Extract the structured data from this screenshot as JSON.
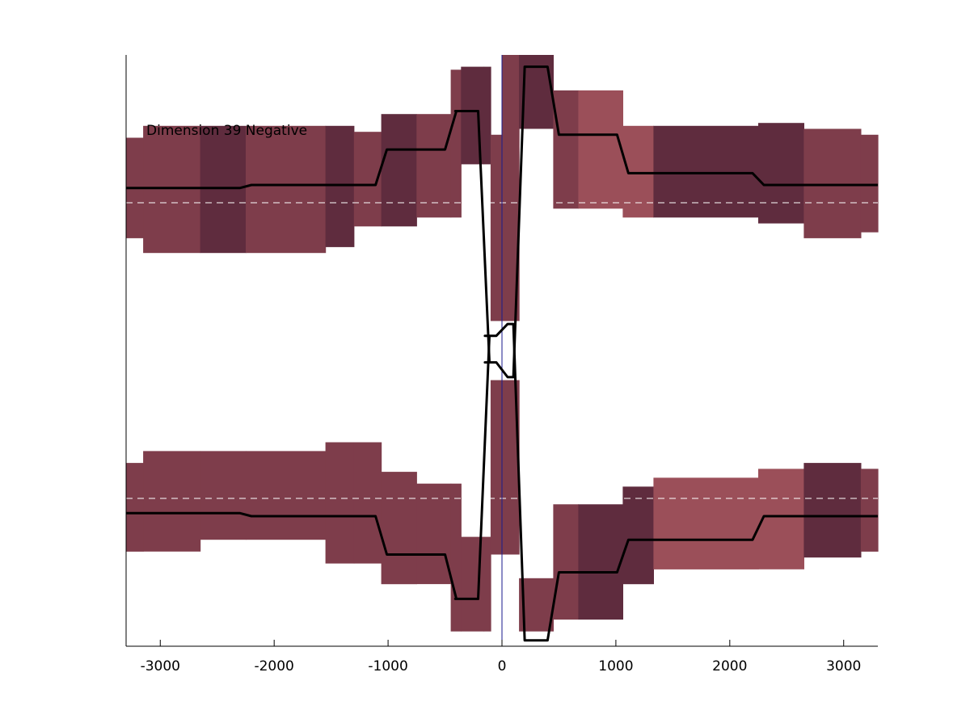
{
  "chart_data": {
    "type": "area",
    "title": "",
    "xlabel": "",
    "ylabel": "",
    "annotation": "Dimension 39 Negative",
    "xlim": [
      -3300,
      3300
    ],
    "ylim": [
      -1,
      1
    ],
    "x_ticks": [
      -3000,
      -2000,
      -1000,
      0,
      1000,
      2000,
      3000
    ],
    "x_tick_labels": [
      "-3000",
      "-2000",
      "-1000",
      "0",
      "1000",
      "2000",
      "3000"
    ],
    "y_axis_visible_ticks": false,
    "center_line_x": 0,
    "colors": {
      "line": "#000000",
      "baseline": "#ffffff",
      "center_line": "#1a1a8c",
      "band_light": "#9b4f59",
      "band_mid": "#7e3d4b",
      "band_dark": "#5f2c3e"
    },
    "segment_edges": [
      -3300,
      -3150,
      -2650,
      -2250,
      -1550,
      -1300,
      -1060,
      -750,
      -450,
      -360,
      -160,
      -100,
      0,
      150,
      450,
      670,
      1060,
      1330,
      2250,
      2650,
      3150,
      3300
    ],
    "series": [
      {
        "panel": "upper",
        "baseline": 0.5,
        "mean": [
          0.55,
          0.55,
          0.55,
          0.56,
          0.56,
          0.56,
          0.68,
          0.68,
          0.81,
          0.81,
          -0.04,
          -0.04,
          -0.09,
          0.96,
          0.73,
          0.73,
          0.6,
          0.6,
          0.56,
          0.56,
          0.56
        ],
        "upper": [
          0.72,
          0.76,
          0.76,
          0.76,
          0.76,
          0.74,
          0.8,
          0.8,
          0.95,
          0.96,
          0.96,
          0.73,
          1.0,
          1.0,
          0.88,
          0.88,
          0.76,
          0.76,
          0.77,
          0.75,
          0.73
        ],
        "lower": [
          0.38,
          0.33,
          0.33,
          0.33,
          0.35,
          0.42,
          0.42,
          0.45,
          0.45,
          0.63,
          0.63,
          0.1,
          0.1,
          0.75,
          0.48,
          0.48,
          0.45,
          0.45,
          0.43,
          0.38,
          0.4
        ],
        "shade": [
          "mid",
          "mid",
          "dark",
          "mid",
          "dark",
          "mid",
          "dark",
          "mid",
          "mid",
          "dark",
          "dark",
          "mid",
          "mid",
          "dark",
          "mid",
          "light",
          "light",
          "dark",
          "dark",
          "mid",
          "mid"
        ]
      },
      {
        "panel": "lower",
        "baseline": -0.5,
        "mean": [
          -0.55,
          -0.55,
          -0.55,
          -0.56,
          -0.56,
          -0.56,
          -0.69,
          -0.69,
          -0.84,
          -0.84,
          0.05,
          0.05,
          0.09,
          -0.98,
          -0.75,
          -0.75,
          -0.64,
          -0.64,
          -0.56,
          -0.56,
          -0.56
        ],
        "upper": [
          -0.38,
          -0.34,
          -0.34,
          -0.34,
          -0.31,
          -0.31,
          -0.41,
          -0.45,
          -0.45,
          -0.63,
          -0.63,
          -0.1,
          -0.1,
          -0.77,
          -0.52,
          -0.52,
          -0.46,
          -0.43,
          -0.4,
          -0.38,
          -0.4
        ],
        "lower": [
          -0.68,
          -0.68,
          -0.64,
          -0.64,
          -0.72,
          -0.72,
          -0.79,
          -0.79,
          -0.95,
          -0.95,
          -0.95,
          -0.69,
          -0.69,
          -0.95,
          -0.91,
          -0.91,
          -0.79,
          -0.74,
          -0.74,
          -0.7,
          -0.68
        ],
        "shade": [
          "mid",
          "mid",
          "mid",
          "mid",
          "mid",
          "mid",
          "mid",
          "mid",
          "mid",
          "mid",
          "mid",
          "mid",
          "mid",
          "mid",
          "mid",
          "dark",
          "dark",
          "light",
          "light",
          "dark",
          "mid"
        ]
      }
    ]
  }
}
